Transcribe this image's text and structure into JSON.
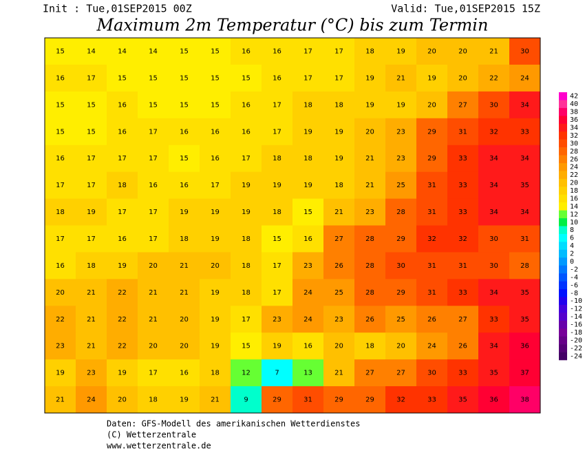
{
  "header": {
    "init": "Init : Tue,01SEP2015 00Z",
    "valid": "Valid: Tue,01SEP2015 15Z",
    "title": "Maximum 2m Temperatur (°C) bis zum Termin"
  },
  "map": {
    "grid": [
      [
        15,
        14,
        14,
        14,
        15,
        15,
        16,
        16,
        17,
        17,
        18,
        19,
        20,
        20,
        21,
        30
      ],
      [
        16,
        17,
        15,
        15,
        15,
        15,
        15,
        16,
        17,
        17,
        19,
        21,
        19,
        20,
        22,
        24
      ],
      [
        15,
        15,
        16,
        15,
        15,
        15,
        16,
        17,
        18,
        18,
        19,
        19,
        20,
        27,
        30,
        34
      ],
      [
        15,
        15,
        16,
        17,
        16,
        16,
        16,
        17,
        19,
        19,
        20,
        23,
        29,
        31,
        32,
        33
      ],
      [
        16,
        17,
        17,
        17,
        15,
        16,
        17,
        18,
        18,
        19,
        21,
        23,
        29,
        33,
        34,
        34
      ],
      [
        17,
        17,
        18,
        16,
        16,
        17,
        19,
        19,
        19,
        18,
        21,
        25,
        31,
        33,
        34,
        35
      ],
      [
        18,
        19,
        17,
        17,
        19,
        19,
        19,
        18,
        15,
        21,
        23,
        28,
        31,
        33,
        34,
        34
      ],
      [
        17,
        17,
        16,
        17,
        18,
        19,
        18,
        15,
        16,
        27,
        28,
        29,
        32,
        32,
        30,
        31
      ],
      [
        16,
        18,
        19,
        20,
        21,
        20,
        18,
        17,
        23,
        26,
        28,
        30,
        31,
        31,
        30,
        28
      ],
      [
        20,
        21,
        22,
        21,
        21,
        19,
        18,
        17,
        24,
        25,
        28,
        29,
        31,
        33,
        34,
        35
      ],
      [
        22,
        21,
        22,
        21,
        20,
        19,
        17,
        23,
        24,
        23,
        26,
        25,
        26,
        27,
        33,
        35
      ],
      [
        23,
        21,
        22,
        20,
        20,
        19,
        15,
        19,
        16,
        20,
        18,
        20,
        24,
        26,
        34,
        36
      ],
      [
        19,
        23,
        19,
        17,
        16,
        18,
        12,
        7,
        13,
        21,
        27,
        27,
        30,
        33,
        35,
        37
      ],
      [
        21,
        24,
        20,
        18,
        19,
        21,
        9,
        29,
        31,
        29,
        29,
        32,
        33,
        35,
        36,
        38
      ]
    ]
  },
  "colorbar": [
    {
      "value": 42,
      "color": "#ff00cc"
    },
    {
      "value": 40,
      "color": "#ff3399"
    },
    {
      "value": 38,
      "color": "#ff0066"
    },
    {
      "value": 36,
      "color": "#ff0033"
    },
    {
      "value": 34,
      "color": "#ff1a1a"
    },
    {
      "value": 32,
      "color": "#ff3300"
    },
    {
      "value": 30,
      "color": "#ff4d00"
    },
    {
      "value": 28,
      "color": "#ff6600"
    },
    {
      "value": 26,
      "color": "#ff8000"
    },
    {
      "value": 24,
      "color": "#ff9900"
    },
    {
      "value": 22,
      "color": "#ffad00"
    },
    {
      "value": 20,
      "color": "#ffc000"
    },
    {
      "value": 18,
      "color": "#ffd000"
    },
    {
      "value": 16,
      "color": "#ffe000"
    },
    {
      "value": 14,
      "color": "#ffee00"
    },
    {
      "value": 12,
      "color": "#66ff33"
    },
    {
      "value": 10,
      "color": "#00ee44"
    },
    {
      "value": 8,
      "color": "#00ffcc"
    },
    {
      "value": 6,
      "color": "#00ffff"
    },
    {
      "value": 4,
      "color": "#00ddff"
    },
    {
      "value": 2,
      "color": "#00bbff"
    },
    {
      "value": 0,
      "color": "#0099ff"
    },
    {
      "value": -2,
      "color": "#0077ff"
    },
    {
      "value": -4,
      "color": "#0055ff"
    },
    {
      "value": -6,
      "color": "#0033ff"
    },
    {
      "value": -8,
      "color": "#0011ff"
    },
    {
      "value": -10,
      "color": "#2200ee"
    },
    {
      "value": -12,
      "color": "#4400dd"
    },
    {
      "value": -14,
      "color": "#5500cc"
    },
    {
      "value": -16,
      "color": "#6600aa"
    },
    {
      "value": -18,
      "color": "#770099"
    },
    {
      "value": -20,
      "color": "#660088"
    },
    {
      "value": -22,
      "color": "#550077"
    },
    {
      "value": -24,
      "color": "#440066"
    }
  ],
  "footer": {
    "line1": "Daten: GFS-Modell des amerikanischen Wetterdienstes",
    "line2": "(C) Wetterzentrale",
    "line3": "www.wetterzentrale.de"
  }
}
